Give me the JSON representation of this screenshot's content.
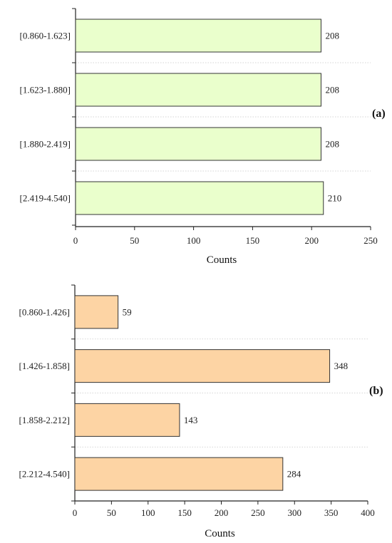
{
  "chart_data": [
    {
      "type": "bar",
      "orientation": "horizontal",
      "panel_label": "(a)",
      "categories": [
        "[0.860-1.623]",
        "[1.623-1.880]",
        "[1.880-2.419]",
        "[2.419-4.540]"
      ],
      "values": [
        208,
        208,
        208,
        210
      ],
      "xlabel": "Counts",
      "xlim": [
        0,
        250
      ],
      "xticks": [
        0,
        50,
        100,
        150,
        200,
        250
      ],
      "bar_color": "#eaffcc",
      "grid": false
    },
    {
      "type": "bar",
      "orientation": "horizontal",
      "panel_label": "(b)",
      "categories": [
        "[0.860-1.426]",
        "[1.426-1.858]",
        "[1.858-2.212]",
        "[2.212-4.540]"
      ],
      "values": [
        59,
        348,
        143,
        284
      ],
      "xlabel": "Counts",
      "xlim": [
        0,
        400
      ],
      "xticks": [
        0,
        50,
        100,
        150,
        200,
        250,
        300,
        350,
        400
      ],
      "bar_color": "#fdd4a4",
      "grid": false
    }
  ]
}
